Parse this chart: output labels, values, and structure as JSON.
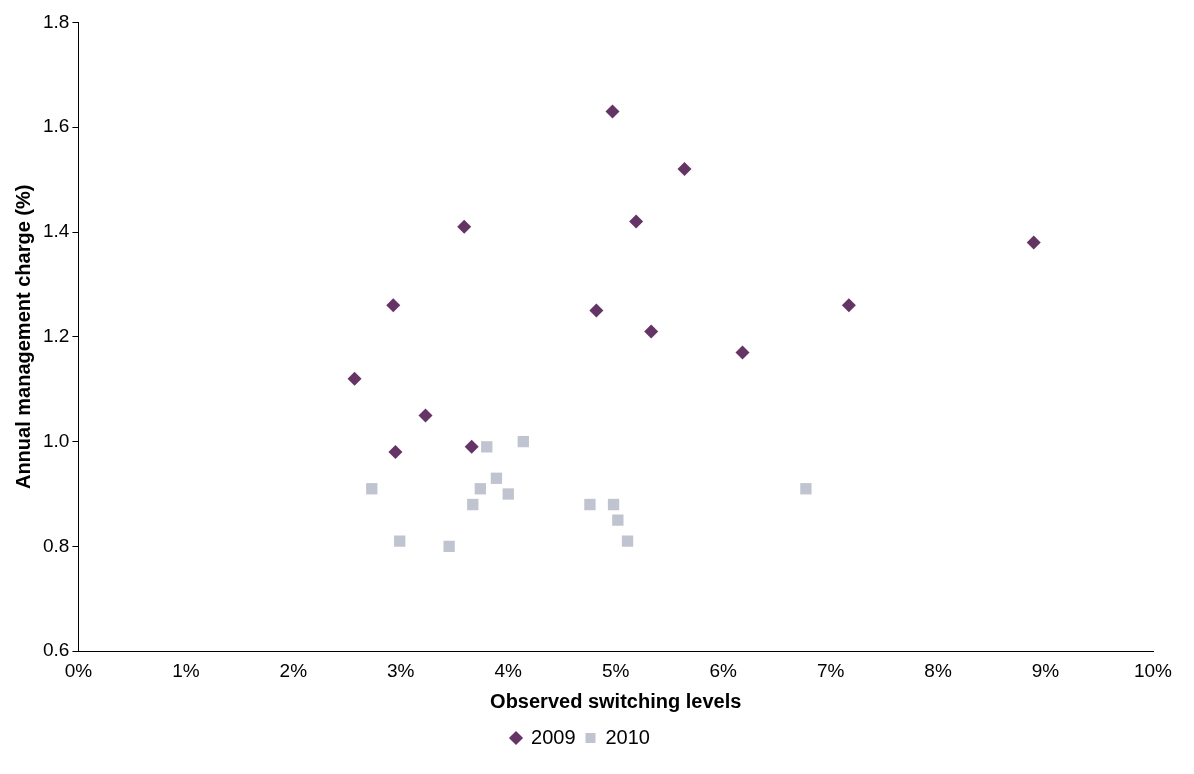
{
  "chart_data": {
    "type": "scatter",
    "xlabel": "Observed switching levels",
    "ylabel": "Annual management charge (%)",
    "xlim": [
      0,
      10
    ],
    "xticks": [
      {
        "value": 0,
        "label": "0%"
      },
      {
        "value": 1,
        "label": "1%"
      },
      {
        "value": 2,
        "label": "2%"
      },
      {
        "value": 3,
        "label": "3%"
      },
      {
        "value": 4,
        "label": "4%"
      },
      {
        "value": 5,
        "label": "5%"
      },
      {
        "value": 6,
        "label": "6%"
      },
      {
        "value": 7,
        "label": "7%"
      },
      {
        "value": 8,
        "label": "8%"
      },
      {
        "value": 9,
        "label": "9%"
      },
      {
        "value": 10,
        "label": "10%"
      }
    ],
    "ylim": [
      0.6,
      1.8
    ],
    "yticks": [
      {
        "value": 0.6,
        "label": "0.6"
      },
      {
        "value": 0.8,
        "label": "0.8"
      },
      {
        "value": 1,
        "label": "1.0"
      },
      {
        "value": 1.2,
        "label": "1.2"
      },
      {
        "value": 1.4,
        "label": "1.4"
      },
      {
        "value": 1.6,
        "label": "1.6"
      },
      {
        "value": 1.8,
        "label": "1.8"
      }
    ],
    "grid": false,
    "legend": "bottom",
    "series": [
      {
        "name": "2009",
        "color": "#663366",
        "marker": "diamond",
        "x": [
          2.57,
          2.93,
          2.95,
          3.23,
          3.59,
          3.66,
          4.82,
          4.97,
          5.19,
          5.33,
          5.64,
          6.18,
          7.17,
          8.89
        ],
        "values": [
          1.12,
          1.26,
          0.98,
          1.05,
          1.41,
          0.99,
          1.25,
          1.63,
          1.42,
          1.21,
          1.52,
          1.17,
          1.26,
          1.38
        ]
      },
      {
        "name": "2010",
        "color": "#c0c4d0",
        "marker": "square",
        "x": [
          2.73,
          2.99,
          3.45,
          3.67,
          3.74,
          3.8,
          3.89,
          4.0,
          4.14,
          4.76,
          4.98,
          5.02,
          5.11,
          6.77
        ],
        "values": [
          0.91,
          0.81,
          0.8,
          0.88,
          0.91,
          0.99,
          0.93,
          0.9,
          1.0,
          0.88,
          0.88,
          0.85,
          0.81,
          0.91
        ]
      }
    ]
  }
}
